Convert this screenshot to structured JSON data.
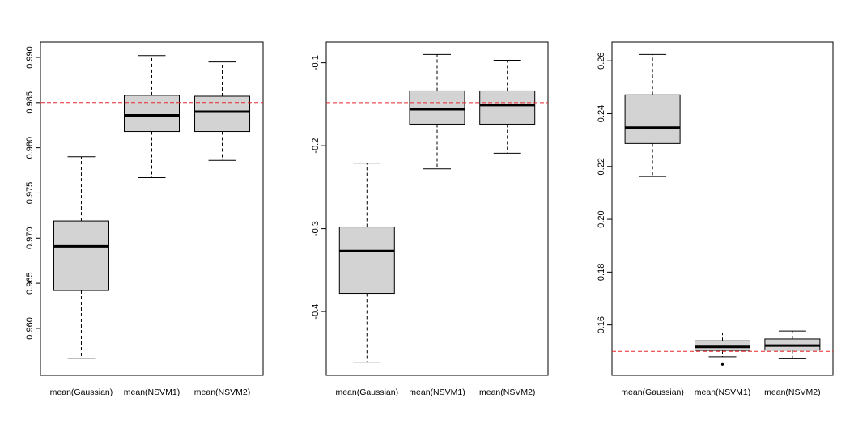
{
  "colors": {
    "box_fill": "#d3d3d3",
    "stroke": "#000000",
    "reference_line": "#e8262b",
    "background": "#ffffff"
  },
  "chart_data": [
    {
      "type": "boxplot",
      "title": "",
      "xlabel": "",
      "ylabel": "",
      "categories": [
        "mean(Gaussian)",
        "mean(NSVM1)",
        "mean(NSVM2)"
      ],
      "ylim": [
        0.9548,
        0.9917
      ],
      "yticks": [
        0.96,
        0.965,
        0.97,
        0.975,
        0.98,
        0.985,
        0.99
      ],
      "ytick_labels": [
        "0.960",
        "0.965",
        "0.970",
        "0.975",
        "0.980",
        "0.985",
        "0.990"
      ],
      "reference_line": 0.985,
      "boxes": [
        {
          "whisker_low": 0.9567,
          "q1": 0.9642,
          "median": 0.9691,
          "q3": 0.9719,
          "whisker_high": 0.979,
          "outliers": []
        },
        {
          "whisker_low": 0.9767,
          "q1": 0.9818,
          "median": 0.9836,
          "q3": 0.9858,
          "whisker_high": 0.9902,
          "outliers": []
        },
        {
          "whisker_low": 0.9786,
          "q1": 0.9818,
          "median": 0.984,
          "q3": 0.9857,
          "whisker_high": 0.9895,
          "outliers": []
        }
      ]
    },
    {
      "type": "boxplot",
      "title": "",
      "xlabel": "",
      "ylabel": "",
      "categories": [
        "mean(Gaussian)",
        "mean(NSVM1)",
        "mean(NSVM2)"
      ],
      "ylim": [
        -0.477,
        -0.075
      ],
      "yticks": [
        -0.4,
        -0.3,
        -0.2,
        -0.1
      ],
      "ytick_labels": [
        "-0.4",
        "-0.3",
        "-0.2",
        "-0.1"
      ],
      "reference_line": -0.148,
      "boxes": [
        {
          "whisker_low": -0.461,
          "q1": -0.378,
          "median": -0.327,
          "q3": -0.298,
          "whisker_high": -0.221,
          "outliers": []
        },
        {
          "whisker_low": -0.228,
          "q1": -0.174,
          "median": -0.156,
          "q3": -0.134,
          "whisker_high": -0.09,
          "outliers": []
        },
        {
          "whisker_low": -0.209,
          "q1": -0.174,
          "median": -0.151,
          "q3": -0.134,
          "whisker_high": -0.097,
          "outliers": []
        }
      ]
    },
    {
      "type": "boxplot",
      "title": "",
      "xlabel": "",
      "ylabel": "",
      "categories": [
        "mean(Gaussian)",
        "mean(NSVM1)",
        "mean(NSVM2)"
      ],
      "ylim": [
        0.1409,
        0.2671
      ],
      "yticks": [
        0.16,
        0.18,
        0.2,
        0.22,
        0.24,
        0.26
      ],
      "ytick_labels": [
        "0.16",
        "0.18",
        "0.20",
        "0.22",
        "0.24",
        "0.26"
      ],
      "reference_line": 0.15,
      "boxes": [
        {
          "whisker_low": 0.2162,
          "q1": 0.2287,
          "median": 0.2347,
          "q3": 0.2471,
          "whisker_high": 0.2624,
          "outliers": []
        },
        {
          "whisker_low": 0.148,
          "q1": 0.1504,
          "median": 0.1517,
          "q3": 0.154,
          "whisker_high": 0.157,
          "outliers": [
            0.1451
          ]
        },
        {
          "whisker_low": 0.1472,
          "q1": 0.1505,
          "median": 0.1522,
          "q3": 0.1547,
          "whisker_high": 0.1577,
          "outliers": []
        }
      ]
    }
  ]
}
